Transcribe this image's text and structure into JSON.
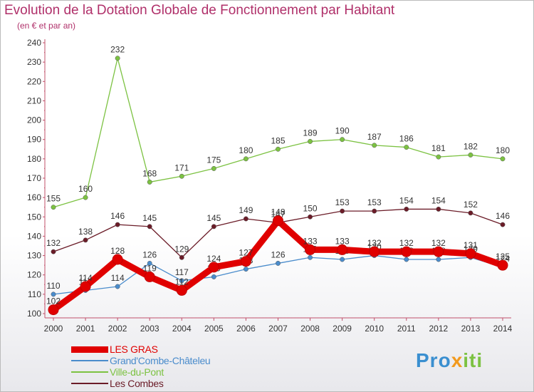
{
  "header": {
    "title": "Evolution de la Dotation Globale de Fonctionnement par Habitant",
    "subtitle": "(en € et par an)"
  },
  "brand": {
    "logo_text": "Proxiti"
  },
  "chart_data": {
    "type": "line",
    "x": [
      "2000",
      "2001",
      "2002",
      "2003",
      "2004",
      "2005",
      "2006",
      "2007",
      "2008",
      "2009",
      "2010",
      "2011",
      "2012",
      "2013",
      "2014"
    ],
    "ylim": [
      100,
      240
    ],
    "yticks": [
      100,
      110,
      120,
      130,
      140,
      150,
      160,
      170,
      180,
      190,
      200,
      210,
      220,
      230,
      240
    ],
    "grid": false,
    "legend_position": "bottom-left",
    "series": [
      {
        "name": "Ville-du-Pont",
        "color": "#7cc242",
        "values": [
          155,
          160,
          232,
          168,
          171,
          175,
          180,
          185,
          189,
          190,
          187,
          186,
          181,
          182,
          180
        ]
      },
      {
        "name": "Les Combes",
        "color": "#6b1c28",
        "values": [
          132,
          138,
          146,
          145,
          129,
          145,
          149,
          147,
          150,
          153,
          153,
          154,
          154,
          152,
          146
        ]
      },
      {
        "name": "Grand'Combe-Châteleu",
        "color": "#4a8ccc",
        "values": [
          110,
          112,
          114,
          126,
          117,
          119,
          123,
          126,
          129,
          128,
          130,
          128,
          128,
          129,
          124
        ]
      },
      {
        "name": "LES GRAS",
        "color": "#e00000",
        "values": [
          102,
          114,
          128,
          119,
          112,
          124,
          127,
          148,
          133,
          133,
          132,
          132,
          132,
          131,
          125
        ]
      }
    ],
    "legend_order": [
      "LES GRAS",
      "Grand'Combe-Châteleu",
      "Ville-du-Pont",
      "Les Combes"
    ]
  }
}
